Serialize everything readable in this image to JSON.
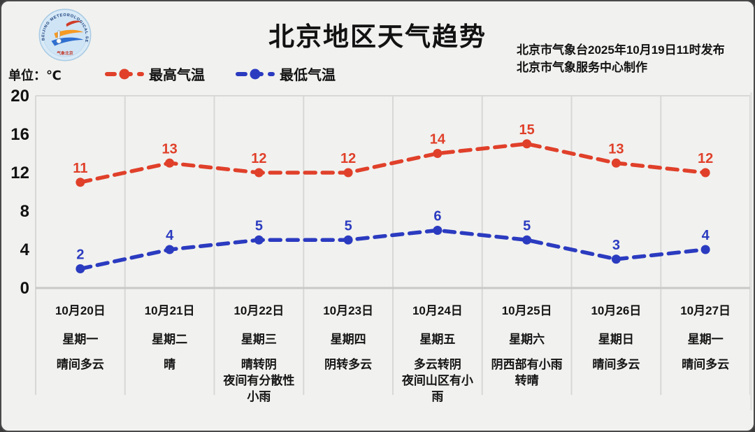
{
  "window": {
    "background": "#f1f1ef",
    "frame_color": "#3c3c3c"
  },
  "header": {
    "title": "北京地区天气趋势",
    "issued_line1": "北京市气象台2025年10月19日11时发布",
    "issued_line2": "北京市气象服务中心制作",
    "unit_label": "单位：℃",
    "logo_arc_text": "BEIJING METEOROLOGICAL SERVICE",
    "logo_bottom_text": "气象北京"
  },
  "chart_data": {
    "type": "line",
    "title": "北京地区天气趋势",
    "ylabel": "单位：℃",
    "ylim": [
      0,
      20
    ],
    "yticks": [
      0,
      4,
      8,
      12,
      16,
      20
    ],
    "grid": "vertical-only",
    "legend_position": "top-left",
    "line_style": "dashed-with-dots",
    "categories": [
      {
        "date": "10月20日",
        "weekday": "星期一",
        "weather_lines": [
          "晴间多云"
        ]
      },
      {
        "date": "10月21日",
        "weekday": "星期二",
        "weather_lines": [
          "晴"
        ]
      },
      {
        "date": "10月22日",
        "weekday": "星期三",
        "weather_lines": [
          "晴转阴",
          "夜间有分散性",
          "小雨"
        ]
      },
      {
        "date": "10月23日",
        "weekday": "星期四",
        "weather_lines": [
          "阴转多云"
        ]
      },
      {
        "date": "10月24日",
        "weekday": "星期五",
        "weather_lines": [
          "多云转阴",
          "夜间山区有小",
          "雨"
        ]
      },
      {
        "date": "10月25日",
        "weekday": "星期六",
        "weather_lines": [
          "阴西部有小雨",
          "转晴"
        ]
      },
      {
        "date": "10月26日",
        "weekday": "星期日",
        "weather_lines": [
          "晴间多云"
        ]
      },
      {
        "date": "10月27日",
        "weekday": "星期一",
        "weather_lines": [
          "晴间多云"
        ]
      }
    ],
    "series": [
      {
        "name": "最高气温",
        "color": "#e0402a",
        "values": [
          11,
          13,
          12,
          12,
          14,
          15,
          13,
          12
        ]
      },
      {
        "name": "最低气温",
        "color": "#2b3bc0",
        "values": [
          2,
          4,
          5,
          5,
          6,
          5,
          3,
          4
        ]
      }
    ]
  }
}
